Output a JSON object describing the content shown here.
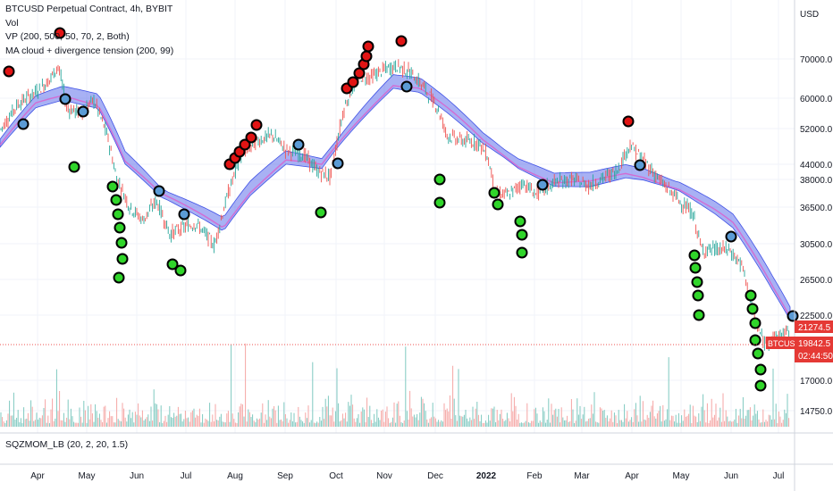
{
  "legend": {
    "main": "BTCUSD Perpetual Contract, 4h, BYBIT",
    "vol": "Vol",
    "vp": "VP (200, 500, 50, 70, 2, Both)",
    "cloud": "MA cloud + divergence tension (200, 99)",
    "sub": "SQZMOM_LB (20, 2, 20, 1.5)"
  },
  "price_axis": {
    "unit": "USD",
    "ticks": [
      "70000.0",
      "60000.0",
      "52000.0",
      "44000.0",
      "38000.0",
      "36500.0",
      "30500.0",
      "26500.0",
      "22500.0",
      "17000.0",
      "14750.0"
    ]
  },
  "time_axis": {
    "ticks": [
      "Apr",
      "May",
      "Jun",
      "Jul",
      "Aug",
      "Sep",
      "Oct",
      "Nov",
      "Dec",
      "2022",
      "Feb",
      "Mar",
      "Apr",
      "May",
      "Jun",
      "Jul"
    ]
  },
  "tags": {
    "upper_price": "21274.5",
    "symbol": "BTCUSD",
    "last_price": "19842.5",
    "countdown": "02:44:50"
  },
  "colors": {
    "up": "#26a69a",
    "down": "#ef5350",
    "cloud": "#3f51e6",
    "ma_fast": "#d36cd3",
    "marker_red": "#e11414",
    "marker_green": "#30d52a",
    "marker_blue": "#5b9bd5",
    "tag_red": "#e53935"
  },
  "chart_data": {
    "type": "line",
    "title": "BTCUSD Perpetual Contract, 4h, BYBIT",
    "x": [
      "Mar",
      "Apr",
      "May",
      "Jun",
      "Jul",
      "Aug",
      "Sep",
      "Oct",
      "Nov",
      "Dec",
      "2022",
      "Feb",
      "Mar",
      "Apr",
      "May",
      "Jun",
      "Jul"
    ],
    "ylabel": "USD",
    "ylim": [
      14000,
      85000
    ],
    "series": [
      {
        "name": "BTCUSD",
        "values": [
          56000,
          58000,
          40000,
          35000,
          33000,
          45000,
          47000,
          56000,
          62000,
          50000,
          43000,
          42000,
          44000,
          38000,
          30000,
          20000,
          21000
        ]
      },
      {
        "name": "MA cloud",
        "values": [
          48000,
          57000,
          56000,
          42000,
          35000,
          34000,
          42000,
          44000,
          61000,
          57000,
          49000,
          42000,
          40000,
          41000,
          36000,
          29000,
          23000
        ]
      }
    ]
  }
}
